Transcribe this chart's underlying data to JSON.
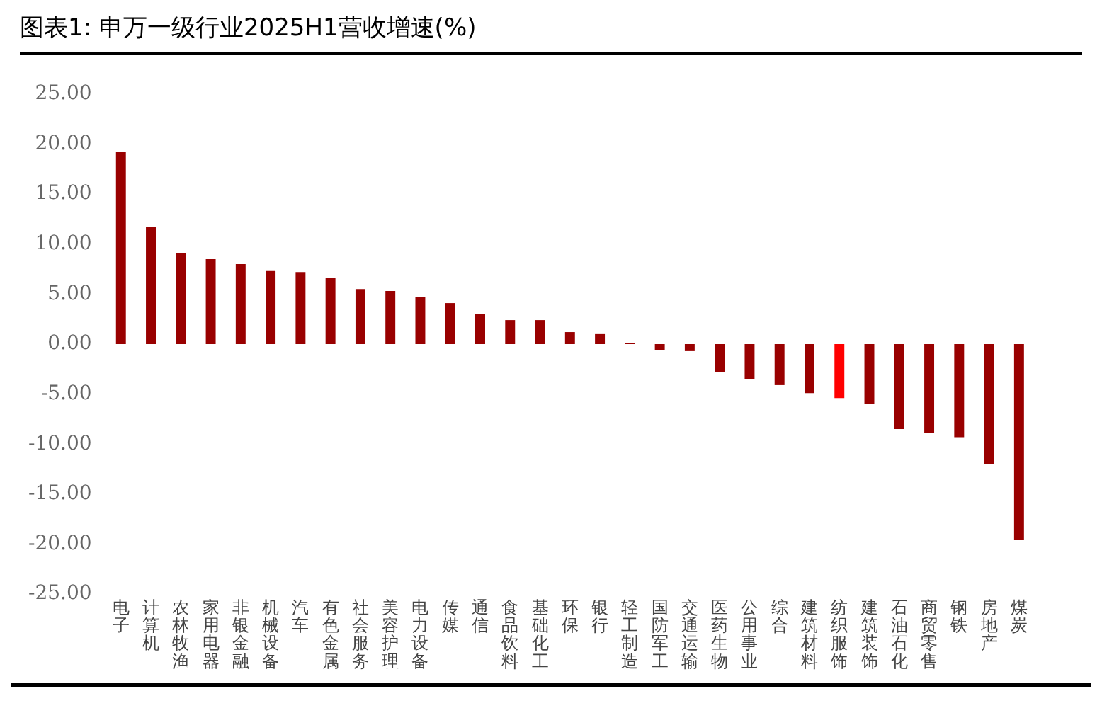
{
  "chart_data": {
    "type": "bar",
    "title": "图表1:  申万一级行业2025H1营收增速(%)",
    "categories": [
      "电子",
      "计算机",
      "农林牧渔",
      "家用电器",
      "非银金融",
      "机械设备",
      "汽车",
      "有色金属",
      "社会服务",
      "美容护理",
      "电力设备",
      "传媒",
      "通信",
      "食品饮料",
      "基础化工",
      "环保",
      "银行",
      "轻工制造",
      "国防军工",
      "交通运输",
      "医药生物",
      "公用事业",
      "综合",
      "建筑材料",
      "纺织服饰",
      "建筑装饰",
      "石油石化",
      "商贸零售",
      "钢铁",
      "房地产",
      "煤炭"
    ],
    "values": [
      19.2,
      11.7,
      9.1,
      8.5,
      8.0,
      7.3,
      7.2,
      6.6,
      5.5,
      5.3,
      4.7,
      4.1,
      3.0,
      2.4,
      2.4,
      1.2,
      1.0,
      0.1,
      -0.6,
      -0.7,
      -2.8,
      -3.5,
      -4.1,
      -4.9,
      -5.4,
      -6.0,
      -8.5,
      -8.9,
      -9.3,
      -12.0,
      -19.6
    ],
    "colors": [
      "#990000",
      "#990000",
      "#990000",
      "#990000",
      "#990000",
      "#990000",
      "#990000",
      "#990000",
      "#990000",
      "#990000",
      "#990000",
      "#990000",
      "#990000",
      "#990000",
      "#990000",
      "#990000",
      "#990000",
      "#990000",
      "#990000",
      "#990000",
      "#990000",
      "#990000",
      "#990000",
      "#990000",
      "#ff0000",
      "#990000",
      "#990000",
      "#990000",
      "#990000",
      "#990000",
      "#990000"
    ],
    "ylim": [
      -25,
      25
    ],
    "yticks": [
      {
        "value": -25,
        "label": "-25.00"
      },
      {
        "value": -20,
        "label": "-20.00"
      },
      {
        "value": -15,
        "label": "-15.00"
      },
      {
        "value": -10,
        "label": "-10.00"
      },
      {
        "value": -5,
        "label": "-5.00"
      },
      {
        "value": 0,
        "label": "0.00"
      },
      {
        "value": 5,
        "label": "5.00"
      },
      {
        "value": 10,
        "label": "10.00"
      },
      {
        "value": 15,
        "label": "15.00"
      },
      {
        "value": 20,
        "label": "20.00"
      },
      {
        "value": 25,
        "label": "25.00"
      }
    ],
    "grid": false,
    "legend": false
  }
}
